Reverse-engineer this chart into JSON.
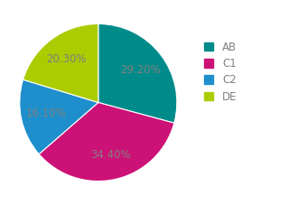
{
  "labels": [
    "AB",
    "C1",
    "C2",
    "DE"
  ],
  "values": [
    29.2,
    34.4,
    16.1,
    20.3
  ],
  "colors": [
    "#008B8B",
    "#CC1177",
    "#1E8FCC",
    "#AACC00"
  ],
  "startangle": 90,
  "legend_labels": [
    "AB",
    "C1",
    "C2",
    "DE"
  ],
  "background_color": "#ffffff",
  "text_color": "#808080",
  "fontsize": 8.5,
  "legend_fontsize": 8.5
}
